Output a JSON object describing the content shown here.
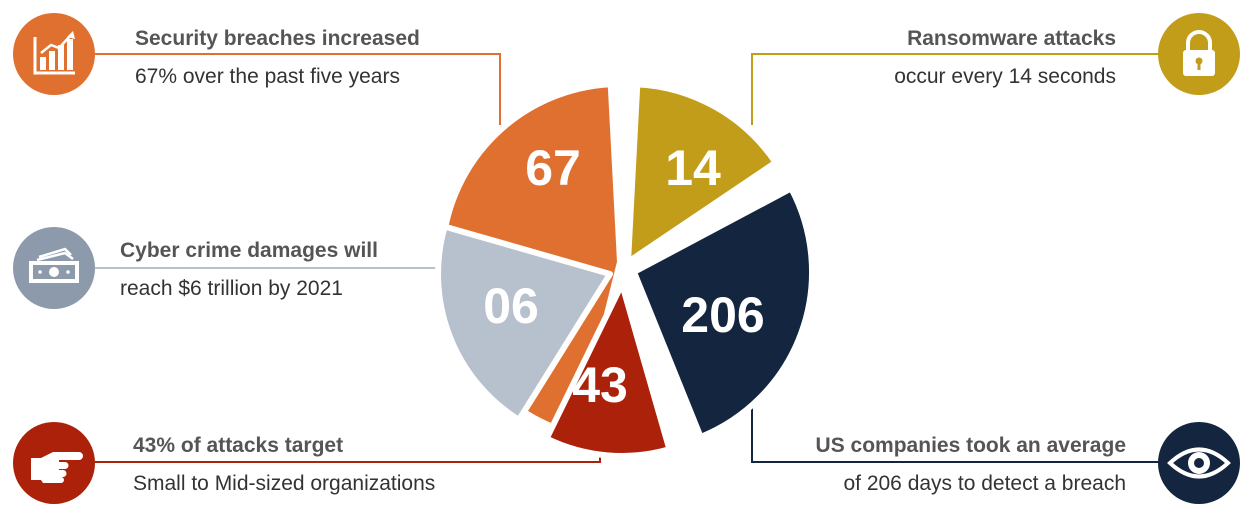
{
  "colors": {
    "orange": "#e0702f",
    "gold": "#c29d1a",
    "navy": "#13253f",
    "red": "#ac2109",
    "gray": "#b7c0cd",
    "icon_gray": "#8d9aac"
  },
  "segments": [
    {
      "key": "breaches",
      "label": "67",
      "color": "#e0702f",
      "icon": "bar-chart-icon"
    },
    {
      "key": "ransomware",
      "label": "14",
      "color": "#c29d1a",
      "icon": "padlock-icon"
    },
    {
      "key": "detect",
      "label": "206",
      "color": "#13253f",
      "icon": "eye-icon"
    },
    {
      "key": "smb",
      "label": "43",
      "color": "#ac2109",
      "icon": "pointing-hand-icon"
    },
    {
      "key": "damages",
      "label": "06",
      "color": "#b7c0cd",
      "icon": "money-icon"
    }
  ],
  "callouts": {
    "breaches": {
      "heading": "Security breaches increased",
      "sub": "67% over the past five years"
    },
    "ransomware": {
      "heading": "Ransomware attacks",
      "sub": "occur every 14 seconds"
    },
    "damages": {
      "heading": "Cyber crime damages will",
      "sub": "reach $6 trillion by 2021"
    },
    "smb": {
      "heading": "43% of attacks target",
      "sub": "Small to Mid-sized organizations"
    },
    "detect": {
      "heading": "US companies took an average",
      "sub": "of 206 days to detect a breach"
    }
  }
}
